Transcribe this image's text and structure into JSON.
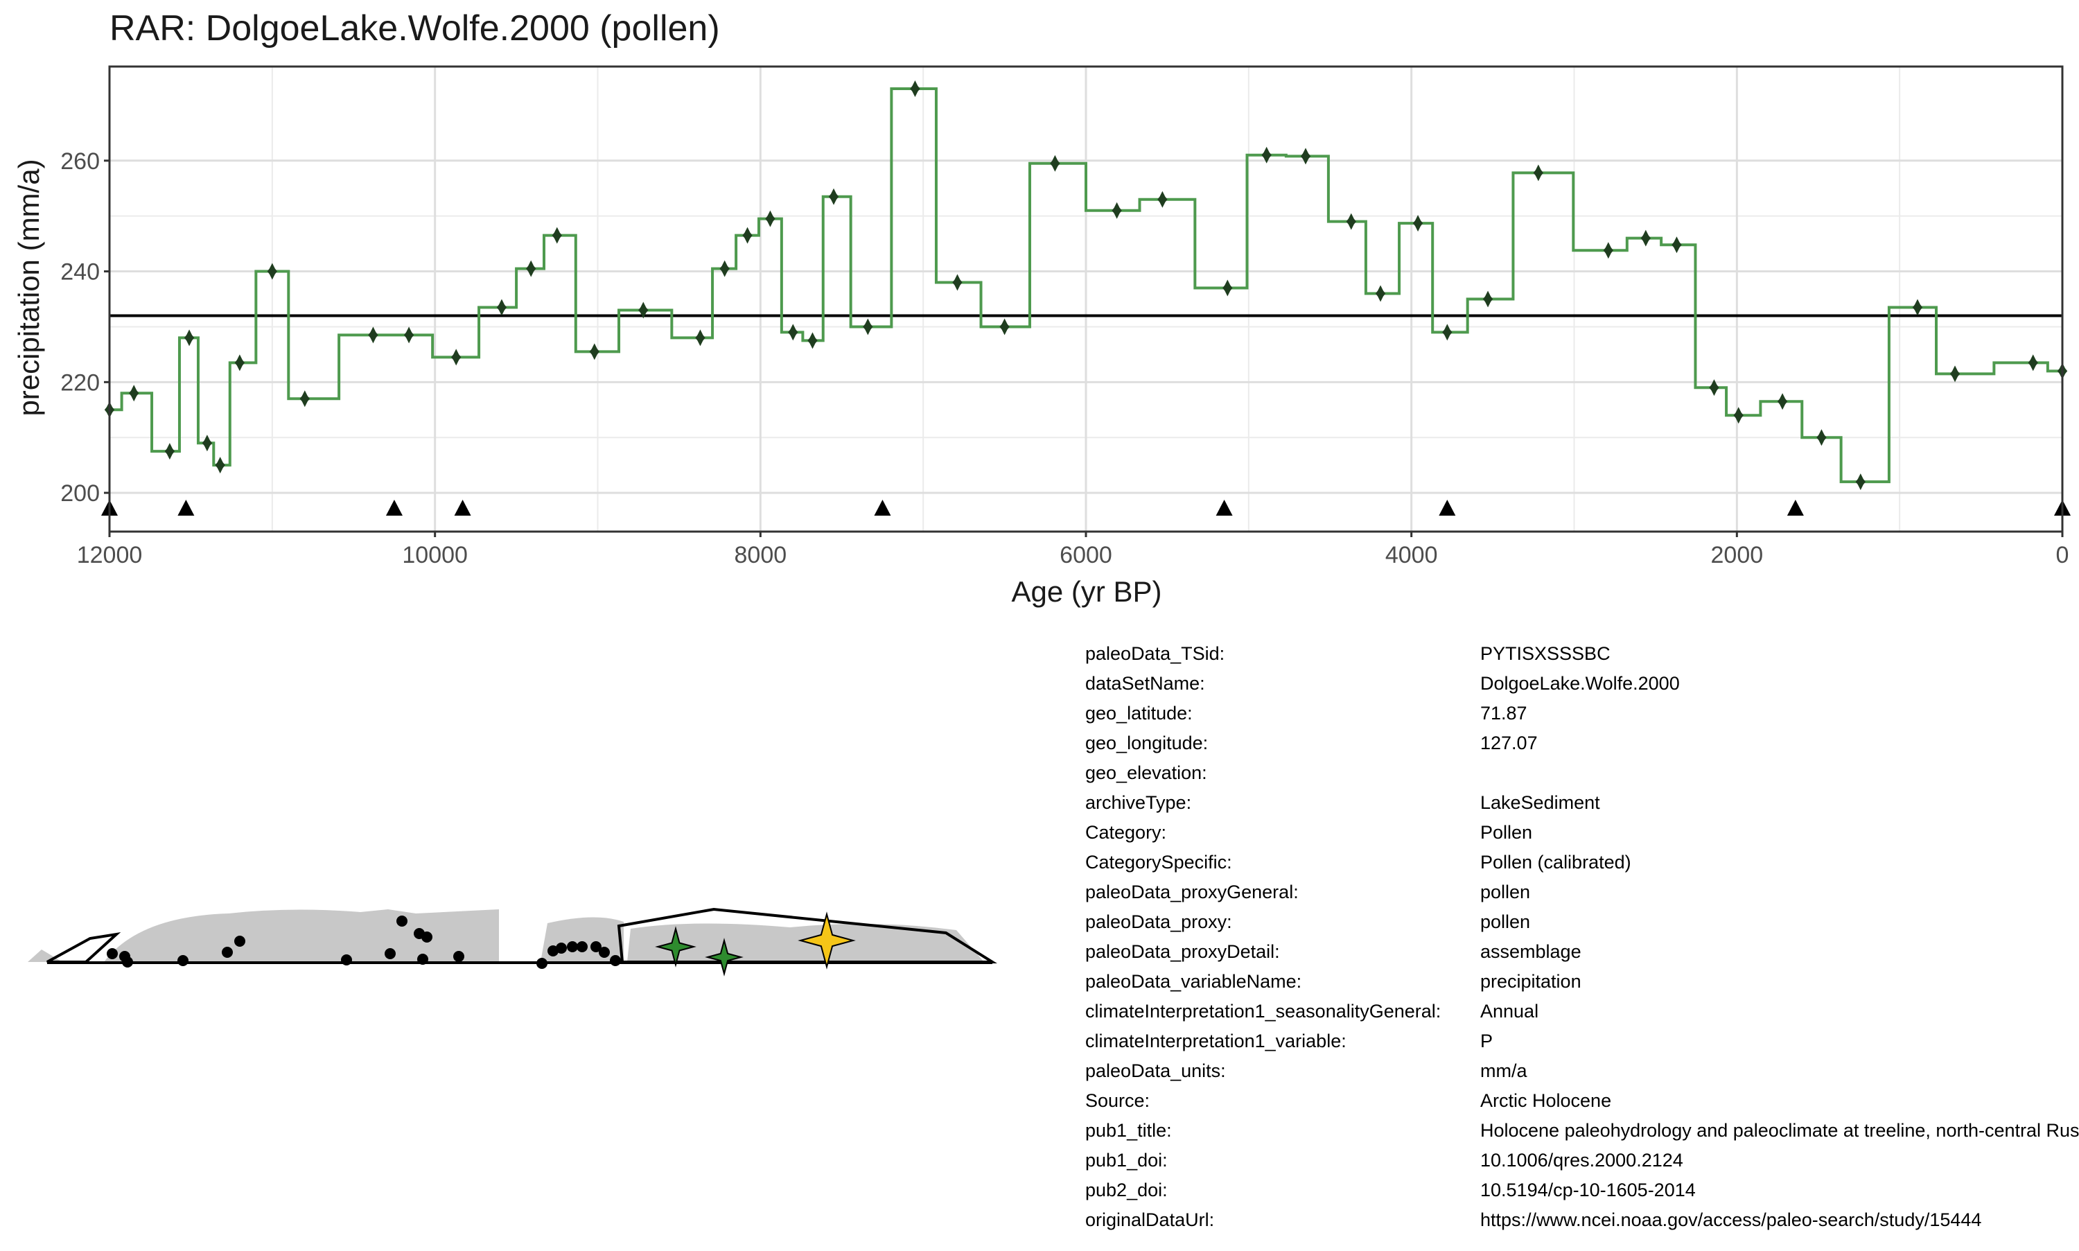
{
  "chart_data": {
    "type": "line",
    "title": "RAR: DolgoeLake.Wolfe.2000 (pollen)",
    "xlabel": "Age (yr BP)",
    "ylabel": "precipitation (mm/a)",
    "x_reversed": true,
    "xlim": [
      12000,
      0
    ],
    "ylim": [
      193,
      277
    ],
    "x_ticks": [
      12000,
      10000,
      8000,
      6000,
      4000,
      2000,
      0
    ],
    "y_ticks": [
      200,
      220,
      240,
      260
    ],
    "grid": true,
    "reference_line": 232,
    "series": [
      {
        "style": "step",
        "color": "#4e9a4e",
        "points": [
          [
            12000,
            215
          ],
          [
            11850,
            218
          ],
          [
            11630,
            207.5
          ],
          [
            11510,
            228
          ],
          [
            11400,
            209
          ],
          [
            11320,
            205
          ],
          [
            11200,
            223.5
          ],
          [
            11000,
            240
          ],
          [
            10800,
            217
          ],
          [
            10380,
            228.5
          ],
          [
            10160,
            228.5
          ],
          [
            9870,
            224.5
          ],
          [
            9590,
            233.5
          ],
          [
            9410,
            240.5
          ],
          [
            9250,
            246.5
          ],
          [
            9020,
            225.5
          ],
          [
            8720,
            233
          ],
          [
            8370,
            228
          ],
          [
            8220,
            240.5
          ],
          [
            8080,
            246.5
          ],
          [
            7940,
            249.5
          ],
          [
            7800,
            229
          ],
          [
            7680,
            227.5
          ],
          [
            7550,
            253.5
          ],
          [
            7340,
            230
          ],
          [
            7050,
            273
          ],
          [
            6790,
            238
          ],
          [
            6500,
            230
          ],
          [
            6190,
            259.5
          ],
          [
            5810,
            251
          ],
          [
            5530,
            253
          ],
          [
            5130,
            237
          ],
          [
            4890,
            261
          ],
          [
            4650,
            260.8
          ],
          [
            4370,
            249
          ],
          [
            4190,
            236
          ],
          [
            3960,
            248.7
          ],
          [
            3780,
            229
          ],
          [
            3530,
            235
          ],
          [
            3220,
            257.8
          ],
          [
            2790,
            243.8
          ],
          [
            2560,
            246
          ],
          [
            2370,
            244.8
          ],
          [
            2140,
            219
          ],
          [
            1990,
            214
          ],
          [
            1720,
            216.5
          ],
          [
            1480,
            210
          ],
          [
            1240,
            202
          ],
          [
            890,
            233.5
          ],
          [
            660,
            221.5
          ],
          [
            180,
            223.5
          ],
          [
            0,
            222
          ]
        ]
      }
    ],
    "age_markers": [
      12000,
      11530,
      10250,
      9830,
      7250,
      5150,
      3780,
      1640,
      0
    ]
  },
  "map": {
    "regions": [
      "polygon-west",
      "polygon-east"
    ],
    "sites": "black dots",
    "highlight_site": "yellow star",
    "other_sites": "green stars"
  },
  "metadata": [
    {
      "key": "paleoData_TSid:",
      "value": "PYTISXSSSBC"
    },
    {
      "key": "dataSetName:",
      "value": "DolgoeLake.Wolfe.2000"
    },
    {
      "key": "geo_latitude:",
      "value": "71.87"
    },
    {
      "key": "geo_longitude:",
      "value": "127.07"
    },
    {
      "key": "geo_elevation:",
      "value": ""
    },
    {
      "key": "archiveType:",
      "value": "LakeSediment"
    },
    {
      "key": "Category:",
      "value": "Pollen"
    },
    {
      "key": "CategorySpecific:",
      "value": "Pollen (calibrated)"
    },
    {
      "key": "paleoData_proxyGeneral:",
      "value": "pollen"
    },
    {
      "key": "paleoData_proxy:",
      "value": "pollen"
    },
    {
      "key": "paleoData_proxyDetail:",
      "value": "assemblage"
    },
    {
      "key": "paleoData_variableName:",
      "value": "precipitation"
    },
    {
      "key": "climateInterpretation1_seasonalityGeneral:",
      "value": "Annual"
    },
    {
      "key": "climateInterpretation1_variable:",
      "value": "P"
    },
    {
      "key": "paleoData_units:",
      "value": "mm/a"
    },
    {
      "key": "Source:",
      "value": "Arctic Holocene"
    },
    {
      "key": "pub1_title:",
      "value": "Holocene paleohydrology and paleoclimate at treeline, north-central Russia"
    },
    {
      "key": "pub1_doi:",
      "value": "10.1006/qres.2000.2124"
    },
    {
      "key": "pub2_doi:",
      "value": "10.5194/cp-10-1605-2014"
    },
    {
      "key": "originalDataUrl:",
      "value": "https://www.ncei.noaa.gov/access/paleo-search/study/15444"
    }
  ],
  "colors": {
    "series": "#4e9a4e",
    "point": "#1f3d1f",
    "grid": "#ebebeb",
    "land": "#c8c8c8",
    "highlight": "#f5c518",
    "site_star": "#2e8b2e"
  }
}
